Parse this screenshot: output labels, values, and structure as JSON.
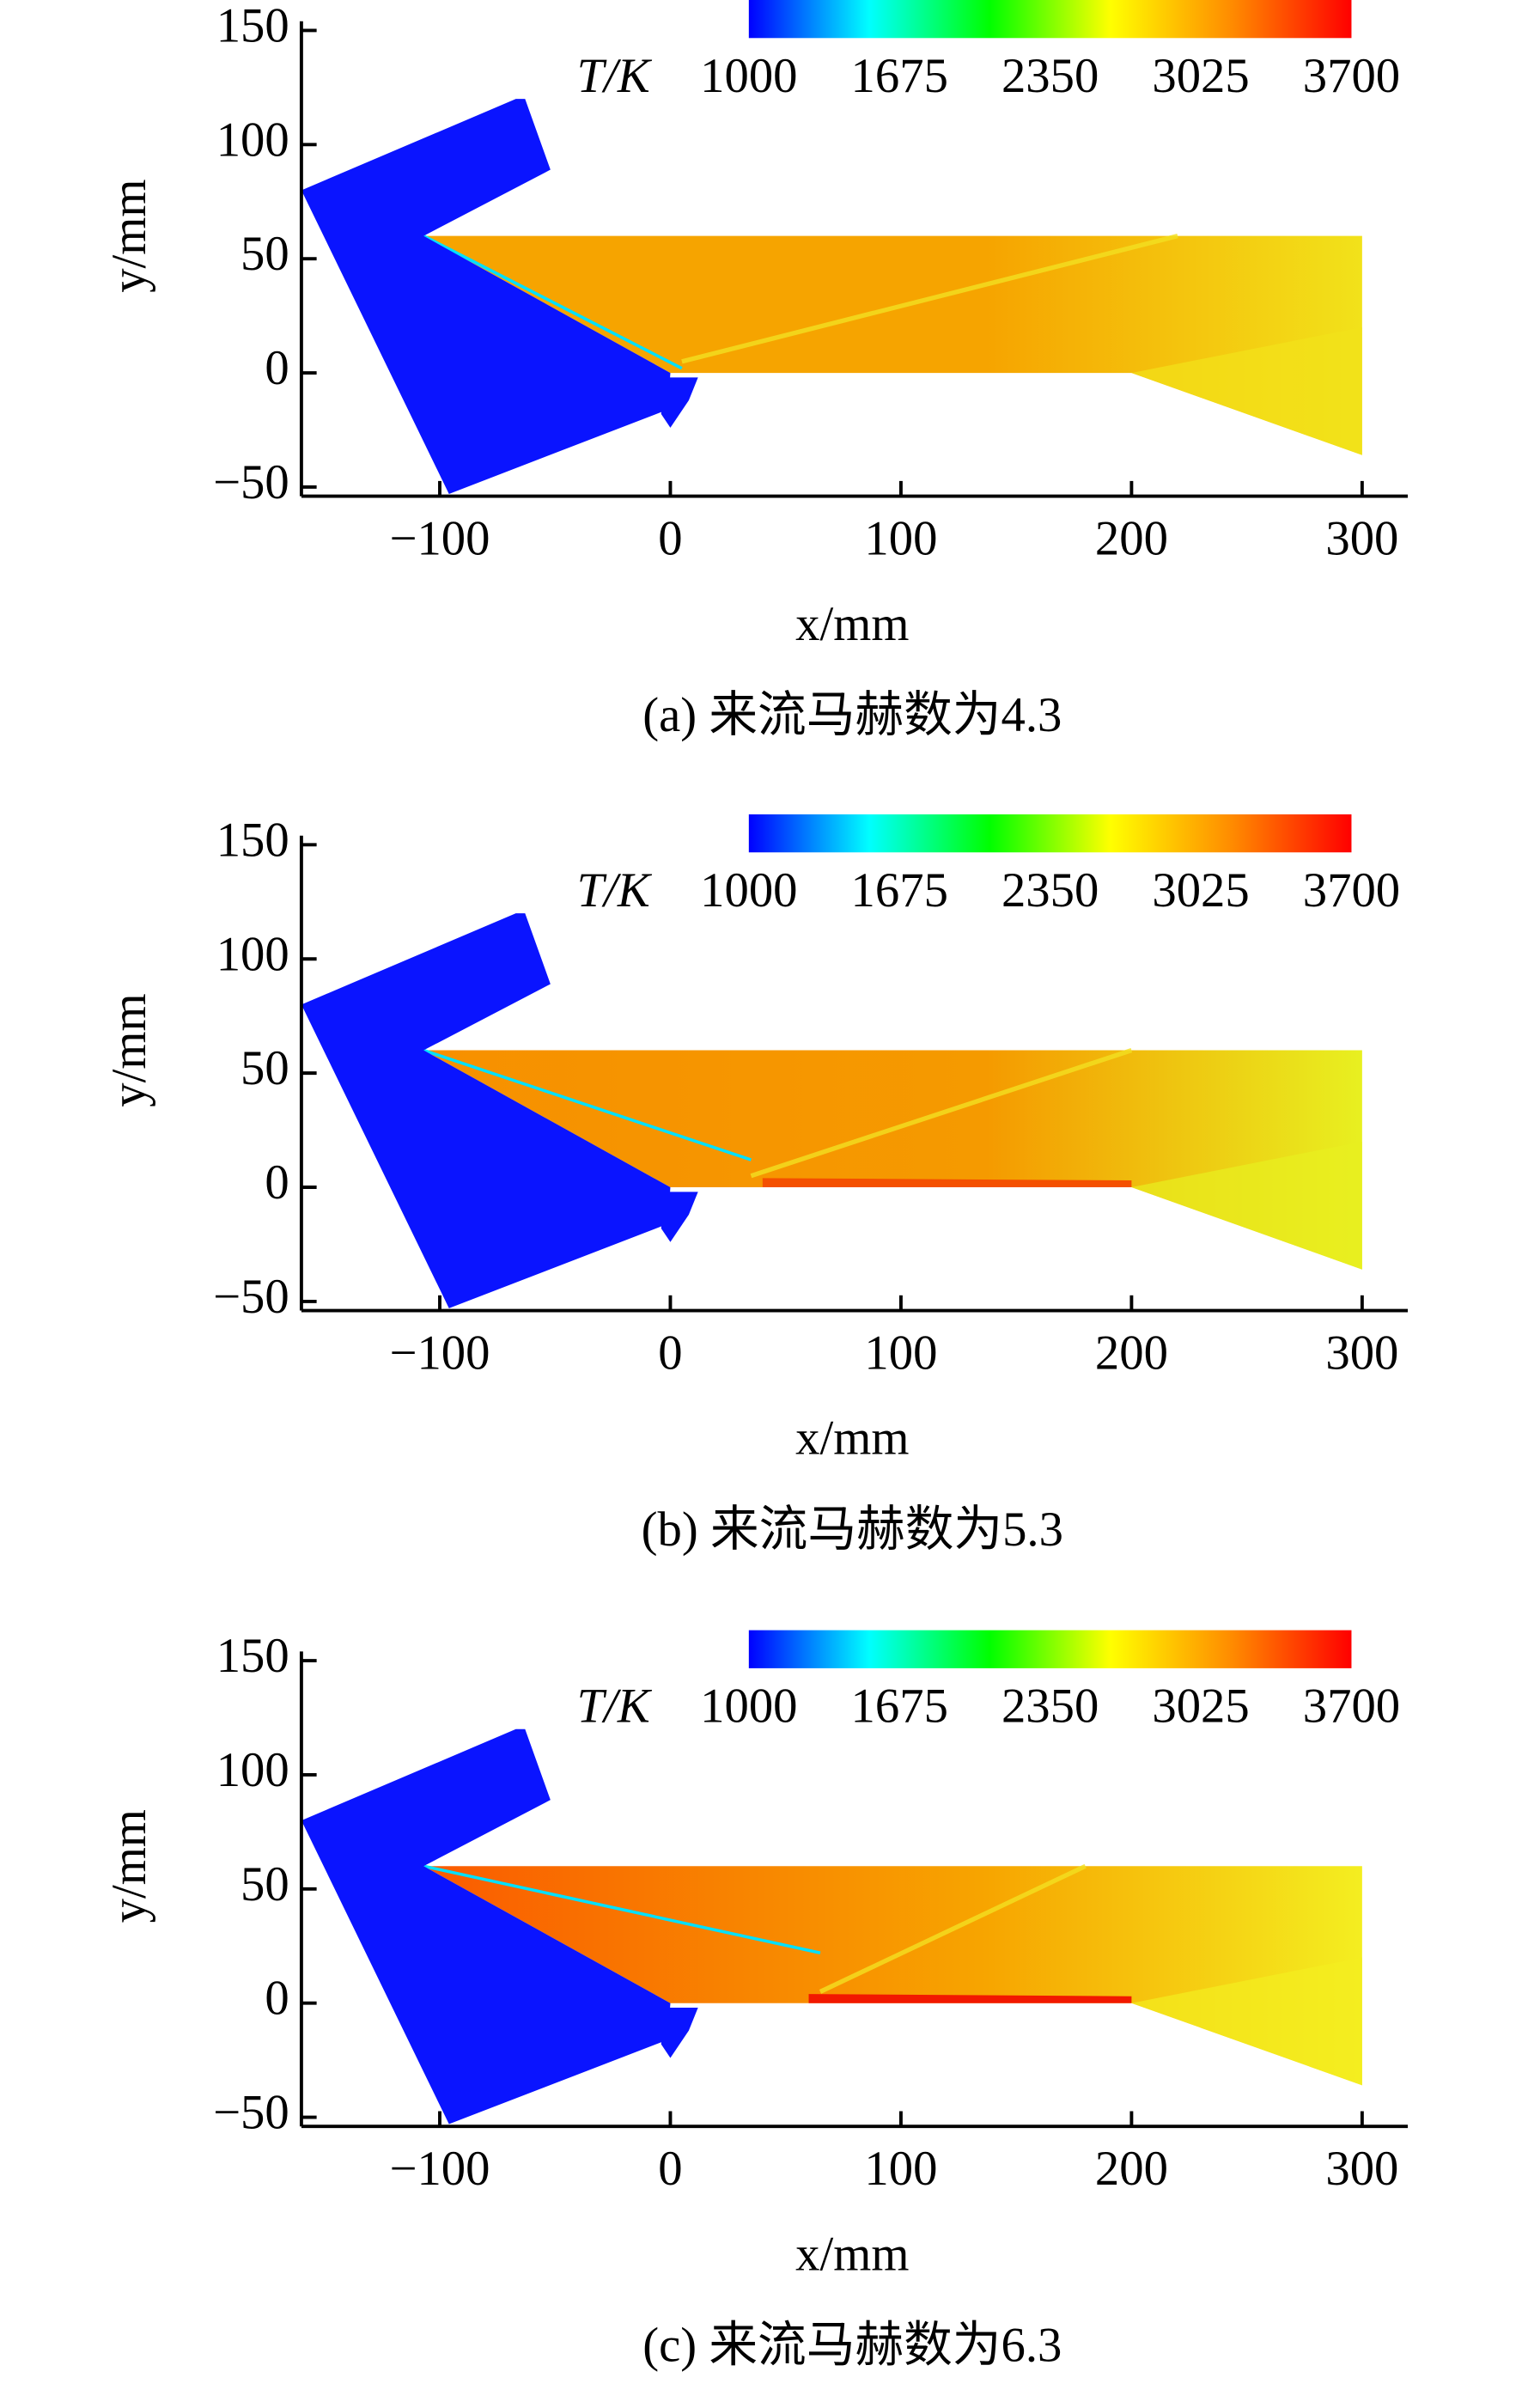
{
  "chart_data": [
    {
      "type": "contour",
      "caption": "(a) 来流马赫数为4.3",
      "xlabel": "x/mm",
      "ylabel": "y/mm",
      "colorbar_label": "T/K",
      "xlim": [
        -160,
        300
      ],
      "ylim": [
        -54,
        150
      ],
      "xticks": [
        {
          "value": -100,
          "label": "−100"
        },
        0,
        100,
        200,
        300
      ],
      "yticks": [
        {
          "value": -50,
          "label": "−50"
        },
        0,
        50,
        100,
        150
      ],
      "clim": [
        1000,
        3700
      ],
      "colorbar_ticks": [
        1000,
        1675,
        2350,
        3025,
        3700
      ],
      "colormap": [
        "#0000ff",
        "#00ffff",
        "#00ff00",
        "#ffff00",
        "#ff8c00",
        "#ff0000"
      ]
    },
    {
      "type": "contour",
      "caption": "(b) 来流马赫数为5.3",
      "xlabel": "x/mm",
      "ylabel": "y/mm",
      "colorbar_label": "T/K",
      "xlim": [
        -160,
        300
      ],
      "ylim": [
        -54,
        150
      ],
      "xticks": [
        {
          "value": -100,
          "label": "−100"
        },
        0,
        100,
        200,
        300
      ],
      "yticks": [
        {
          "value": -50,
          "label": "−50"
        },
        0,
        50,
        100,
        150
      ],
      "clim": [
        1000,
        3700
      ],
      "colorbar_ticks": [
        1000,
        1675,
        2350,
        3025,
        3700
      ],
      "colormap": [
        "#0000ff",
        "#00ffff",
        "#00ff00",
        "#ffff00",
        "#ff8c00",
        "#ff0000"
      ]
    },
    {
      "type": "contour",
      "caption": "(c) 来流马赫数为6.3",
      "xlabel": "x/mm",
      "ylabel": "y/mm",
      "colorbar_label": "T/K",
      "xlim": [
        -160,
        300
      ],
      "ylim": [
        -54,
        150
      ],
      "xticks": [
        {
          "value": -100,
          "label": "−100"
        },
        0,
        100,
        200,
        300
      ],
      "yticks": [
        {
          "value": -50,
          "label": "−50"
        },
        0,
        50,
        100,
        150
      ],
      "clim": [
        1000,
        3700
      ],
      "colorbar_ticks": [
        1000,
        1675,
        2350,
        3025,
        3700
      ],
      "colormap": [
        "#0000ff",
        "#00ffff",
        "#00ff00",
        "#ffff00",
        "#ff8c00",
        "#ff0000"
      ]
    }
  ]
}
